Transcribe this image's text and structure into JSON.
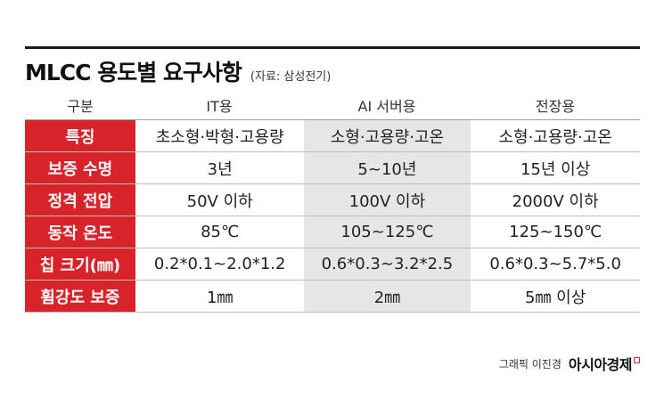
{
  "title": "MLCC 용도별 요구사항",
  "source": "(자료: 삼성전기)",
  "table": {
    "headers": [
      "구분",
      "IT용",
      "AI 서버용",
      "전장용"
    ],
    "rows": [
      {
        "label": "특징",
        "values": [
          "초소형·박형·고용량",
          "소형·고용량·고온",
          "소형·고용량·고온"
        ]
      },
      {
        "label": "보증 수명",
        "values": [
          "3년",
          "5~10년",
          "15년 이상"
        ]
      },
      {
        "label": "정격 전압",
        "values": [
          "50V 이하",
          "100V 이하",
          "2000V 이하"
        ]
      },
      {
        "label": "동작 온도",
        "values": [
          "85℃",
          "105~125℃",
          "125~150℃"
        ]
      },
      {
        "label": "칩 크기(㎜)",
        "values": [
          "0.2*0.1~2.0*1.2",
          "0.6*0.3~3.2*2.5",
          "0.6*0.3~5.7*5.0"
        ]
      },
      {
        "label": "휨강도 보증",
        "values": [
          "1㎜",
          "2㎜",
          "5㎜ 이상"
        ]
      }
    ]
  },
  "credit": "그래픽 이진경",
  "logo": "아시아경제",
  "colors": {
    "accent": "#d8232a",
    "highlight_column": "#e6e6e6",
    "rule": "#1a1a1a"
  }
}
